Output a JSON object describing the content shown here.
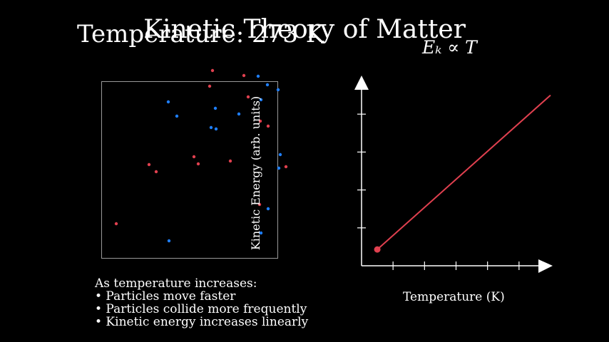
{
  "title": "Kinetic Theory of Matter",
  "temperature_label": "Temperature: 273 K",
  "formula": "Eₖ ∝ T",
  "notes": {
    "heading": "As temperature increases:",
    "items": [
      "• Particles move faster",
      "• Particles collide more frequently",
      "• Kinetic energy increases linearly"
    ]
  },
  "colors": {
    "red": "#e0404f",
    "blue": "#1f7fff",
    "line": "#e0404f",
    "axis": "#ffffff"
  },
  "particles": {
    "red": 14,
    "blue": 15
  },
  "chart_data": {
    "type": "line",
    "xlabel": "Temperature (K)",
    "ylabel": "Kinetic Energy (arb. units)",
    "xlim": [
      0,
      6
    ],
    "ylim": [
      0,
      5
    ],
    "x_ticks": [
      1,
      2,
      3,
      4,
      5
    ],
    "y_ticks": [
      1,
      2,
      3,
      4
    ],
    "series": [
      {
        "name": "Kinetic Energy",
        "x": [
          0.5,
          6
        ],
        "y": [
          0.43,
          4.5
        ]
      }
    ],
    "current_point": {
      "x": 0.5,
      "y": 0.43
    }
  }
}
